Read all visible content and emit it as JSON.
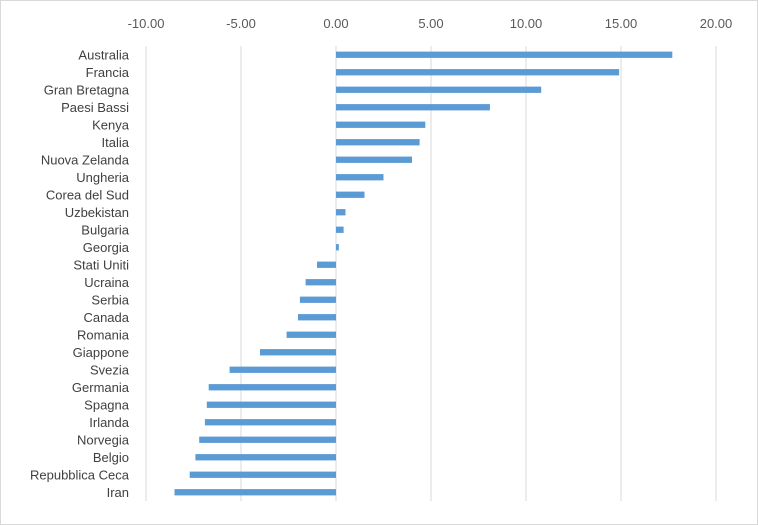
{
  "chart_data": {
    "type": "bar",
    "orientation": "horizontal",
    "title": "",
    "xlabel": "",
    "ylabel": "",
    "xlim": [
      -10,
      20
    ],
    "x_ticks": [
      "-10.00",
      "-5.00",
      "0.00",
      "5.00",
      "10.00",
      "15.00",
      "20.00"
    ],
    "x_tick_values": [
      -10,
      -5,
      0,
      5,
      10,
      15,
      20
    ],
    "x_axis_position": "top",
    "grid": "vertical",
    "legend": "none",
    "bar_color": "#5b9bd5",
    "grid_color": "#d9d9d9",
    "categories": [
      "Australia",
      "Francia",
      "Gran Bretagna",
      "Paesi Bassi",
      "Kenya",
      "Italia",
      "Nuova Zelanda",
      "Ungheria",
      "Corea del Sud",
      "Uzbekistan",
      "Bulgaria",
      "Georgia",
      "Stati Uniti",
      "Ucraina",
      "Serbia",
      "Canada",
      "Romania",
      "Giappone",
      "Svezia",
      "Germania",
      "Spagna",
      "Irlanda",
      "Norvegia",
      "Belgio",
      "Repubblica Ceca",
      "Iran"
    ],
    "values": [
      17.7,
      14.9,
      10.8,
      8.1,
      4.7,
      4.4,
      4.0,
      2.5,
      1.5,
      0.5,
      0.4,
      0.15,
      -1.0,
      -1.6,
      -1.9,
      -2.0,
      -2.6,
      -4.0,
      -5.6,
      -6.7,
      -6.8,
      -6.9,
      -7.2,
      -7.4,
      -7.7,
      -8.5
    ]
  }
}
